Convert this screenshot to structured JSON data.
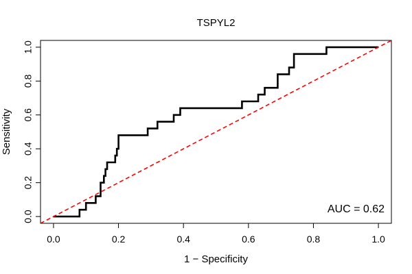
{
  "chart_data": {
    "type": "line",
    "title": "TSPYL2",
    "xlabel": "1 − Specificity",
    "ylabel": "Sensitivity",
    "xlim": [
      -0.04,
      1.04
    ],
    "ylim": [
      -0.04,
      1.04
    ],
    "x_ticks": [
      "0.0",
      "0.2",
      "0.4",
      "0.6",
      "0.8",
      "1.0"
    ],
    "y_ticks": [
      "0.0",
      "0.2",
      "0.4",
      "0.6",
      "0.8",
      "1.0"
    ],
    "grid": false,
    "annotation": "AUC = 0.62",
    "colors": {
      "roc": "#000000",
      "reference": "#ff0000"
    },
    "series": [
      {
        "style": "solid",
        "points": [
          [
            0.0,
            0.0
          ],
          [
            0.08,
            0.0
          ],
          [
            0.08,
            0.04
          ],
          [
            0.1,
            0.04
          ],
          [
            0.1,
            0.08
          ],
          [
            0.13,
            0.08
          ],
          [
            0.13,
            0.12
          ],
          [
            0.145,
            0.12
          ],
          [
            0.145,
            0.2
          ],
          [
            0.155,
            0.2
          ],
          [
            0.155,
            0.24
          ],
          [
            0.16,
            0.24
          ],
          [
            0.16,
            0.28
          ],
          [
            0.165,
            0.28
          ],
          [
            0.165,
            0.32
          ],
          [
            0.19,
            0.32
          ],
          [
            0.19,
            0.36
          ],
          [
            0.195,
            0.36
          ],
          [
            0.195,
            0.4
          ],
          [
            0.2,
            0.4
          ],
          [
            0.2,
            0.48
          ],
          [
            0.29,
            0.48
          ],
          [
            0.29,
            0.52
          ],
          [
            0.32,
            0.52
          ],
          [
            0.32,
            0.56
          ],
          [
            0.37,
            0.56
          ],
          [
            0.37,
            0.6
          ],
          [
            0.39,
            0.6
          ],
          [
            0.39,
            0.64
          ],
          [
            0.58,
            0.64
          ],
          [
            0.58,
            0.68
          ],
          [
            0.63,
            0.68
          ],
          [
            0.63,
            0.72
          ],
          [
            0.65,
            0.72
          ],
          [
            0.65,
            0.76
          ],
          [
            0.69,
            0.76
          ],
          [
            0.69,
            0.84
          ],
          [
            0.725,
            0.84
          ],
          [
            0.725,
            0.88
          ],
          [
            0.74,
            0.88
          ],
          [
            0.74,
            0.96
          ],
          [
            0.84,
            0.96
          ],
          [
            0.84,
            1.0
          ],
          [
            1.0,
            1.0
          ]
        ]
      },
      {
        "style": "dashed",
        "points": [
          [
            -0.04,
            -0.04
          ],
          [
            1.04,
            1.04
          ]
        ]
      }
    ]
  }
}
